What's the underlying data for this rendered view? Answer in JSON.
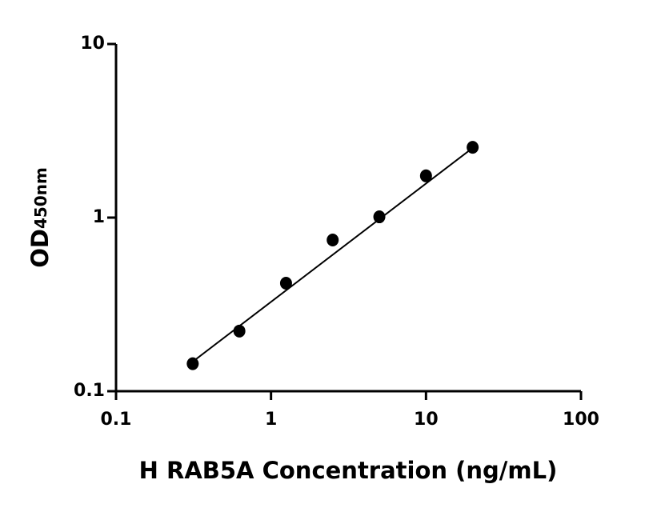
{
  "chart_data": {
    "type": "scatter",
    "xlabel": "H RAB5A Concentration (ng/mL)",
    "ylabel": "OD",
    "ylabel_sub": "450nm",
    "x": [
      0.3125,
      0.625,
      1.25,
      2.5,
      5,
      10,
      20
    ],
    "values": [
      0.144,
      0.222,
      0.419,
      0.743,
      1.01,
      1.74,
      2.54
    ],
    "color": "#000000",
    "fit": {
      "x": [
        0.3125,
        20
      ],
      "values": [
        0.148,
        2.52
      ]
    },
    "xscale": "log",
    "yscale": "log",
    "xlim": [
      0.1,
      100
    ],
    "ylim": [
      0.1,
      10
    ],
    "xticks": [
      0.1,
      1,
      10,
      100
    ],
    "yticks": [
      0.1,
      1,
      10
    ]
  }
}
